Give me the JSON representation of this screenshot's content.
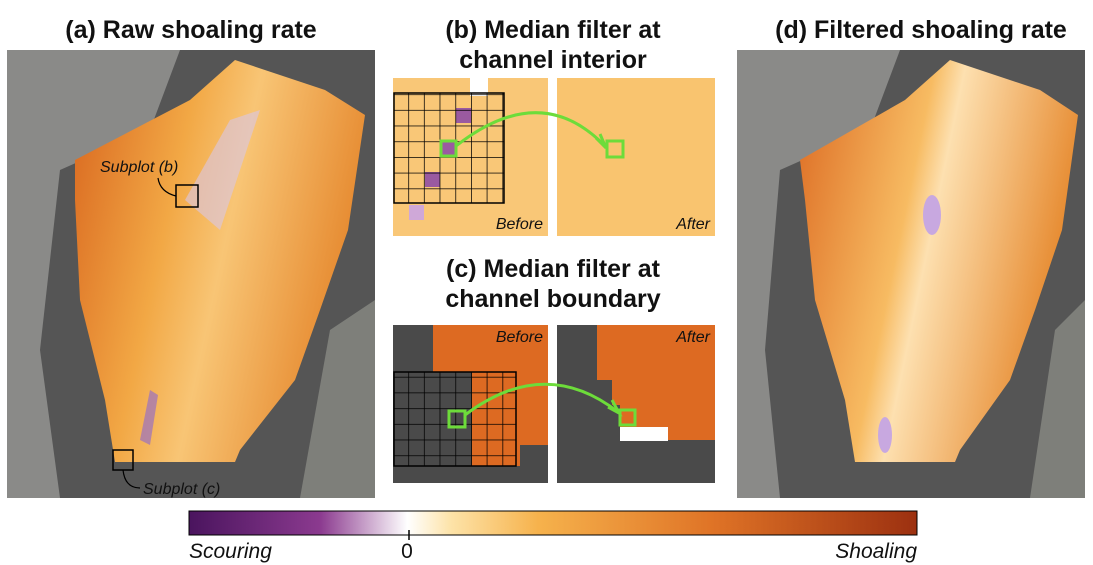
{
  "panels": [
    {
      "title": [
        "(a) Raw shoaling rate"
      ],
      "annotations": [
        "Subplot (b)",
        "Subplot (c)"
      ]
    },
    {
      "title": [
        "(b) Median filter at",
        "channel interior"
      ],
      "before": "Before",
      "after": "After"
    },
    {
      "title": [
        "(c) Median filter at",
        "channel boundary"
      ],
      "before": "Before",
      "after": "After"
    },
    {
      "title": [
        "(d) Filtered shoaling rate"
      ]
    }
  ],
  "colorbar": {
    "left": "Scouring",
    "center": "0",
    "right": "Shoaling"
  }
}
